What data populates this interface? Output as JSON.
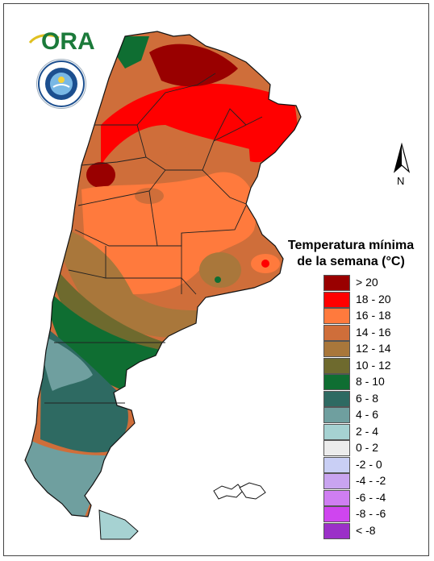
{
  "logo": {
    "text": "ORA",
    "seal_lettering": "SERVICIO METEOROLÓGICO NACIONAL ARGENTINA"
  },
  "north_arrow": {
    "label": "N"
  },
  "legend": {
    "title_line1": "Temperatura mínima",
    "title_line2": "de la semana (°C)",
    "items": [
      {
        "label": "> 20",
        "color": "#990000"
      },
      {
        "label": "18 - 20",
        "color": "#ff0000"
      },
      {
        "label": "16 - 18",
        "color": "#ff7a3d"
      },
      {
        "label": "14 - 16",
        "color": "#cf6e3a"
      },
      {
        "label": "12 - 14",
        "color": "#a9773b"
      },
      {
        "label": "10 - 12",
        "color": "#6e6a2e"
      },
      {
        "label": "8 - 10",
        "color": "#0f6e32"
      },
      {
        "label": "6 - 8",
        "color": "#2e6a62"
      },
      {
        "label": "4 - 6",
        "color": "#6f9f9f"
      },
      {
        "label": "2 - 4",
        "color": "#a6d2d2"
      },
      {
        "label": "0 - 2",
        "color": "#ececec"
      },
      {
        "label": "-2 - 0",
        "color": "#c9cff5"
      },
      {
        "label": "-4 - -2",
        "color": "#c9a4f0"
      },
      {
        "label": "-6 - -4",
        "color": "#cf7ef2"
      },
      {
        "label": "-8 - -6",
        "color": "#cf45ef"
      },
      {
        "label": "< -8",
        "color": "#9b30c8"
      }
    ]
  }
}
